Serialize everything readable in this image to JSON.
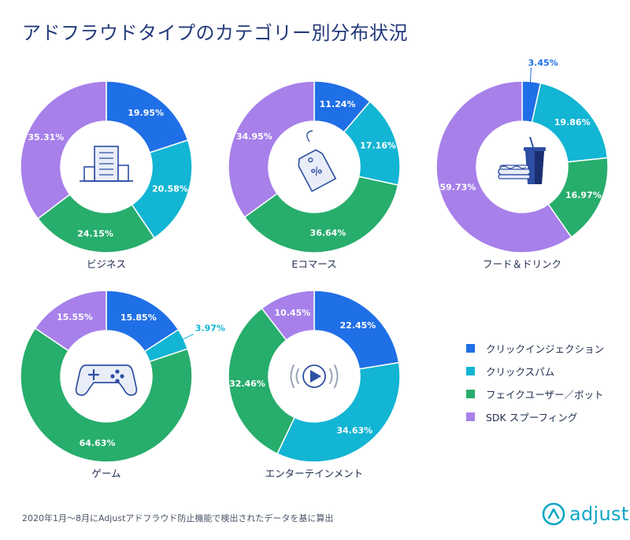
{
  "title": "アドフラウドタイプのカテゴリー別分布状況",
  "colors": {
    "click_injection": "#1f6fe6",
    "click_spam": "#12b5d3",
    "fake_user": "#27ad6c",
    "sdk_spoofing": "#a780ea"
  },
  "legend": [
    {
      "label": "クリックインジェクション",
      "color": "#1f6fe6"
    },
    {
      "label": "クリックスパム",
      "color": "#12b5d3"
    },
    {
      "label": "フェイクユーザー／ボット",
      "color": "#27ad6c"
    },
    {
      "label": "SDK スプーフィング",
      "color": "#a780ea"
    }
  ],
  "chart_data": [
    {
      "type": "pie",
      "label": "ビジネス",
      "icon": "building-icon",
      "series": [
        "クリックインジェクション",
        "クリックスパム",
        "フェイクユーザー／ボット",
        "SDK スプーフィング"
      ],
      "values": [
        19.95,
        20.58,
        24.15,
        35.31
      ],
      "value_labels": [
        "19.95%",
        "20.58%",
        "24.15%",
        "35.31%"
      ]
    },
    {
      "type": "pie",
      "label": "Eコマース",
      "icon": "price-tag-icon",
      "series": [
        "クリックインジェクション",
        "クリックスパム",
        "フェイクユーザー／ボット",
        "SDK スプーフィング"
      ],
      "values": [
        11.24,
        17.16,
        36.64,
        34.95
      ],
      "value_labels": [
        "11.24%",
        "17.16%",
        "36.64%",
        "34.95%"
      ]
    },
    {
      "type": "pie",
      "label": "フード＆ドリンク",
      "icon": "food-drink-icon",
      "series": [
        "クリックインジェクション",
        "クリックスパム",
        "フェイクユーザー／ボット",
        "SDK スプーフィング"
      ],
      "values": [
        3.45,
        19.86,
        16.97,
        59.73
      ],
      "value_labels": [
        "3.45%",
        "19.86%",
        "16.97%",
        "59.73%"
      ]
    },
    {
      "type": "pie",
      "label": "ゲーム",
      "icon": "gamepad-icon",
      "series": [
        "クリックインジェクション",
        "クリックスパム",
        "フェイクユーザー／ボット",
        "SDK スプーフィング"
      ],
      "values": [
        15.85,
        3.97,
        64.63,
        15.55
      ],
      "value_labels": [
        "15.85%",
        "3.97%",
        "64.63%",
        "15.55%"
      ]
    },
    {
      "type": "pie",
      "label": "エンターテインメント",
      "icon": "play-icon",
      "series": [
        "クリックインジェクション",
        "クリックスパム",
        "フェイクユーザー／ボット",
        "SDK スプーフィング"
      ],
      "values": [
        22.45,
        34.63,
        32.46,
        10.45
      ],
      "value_labels": [
        "22.45%",
        "34.63%",
        "32.46%",
        "10.45%"
      ]
    }
  ],
  "footnote": "2020年1月〜8月にAdjustアドフラウド防止機能で検出されたデータを基に算出",
  "logo": {
    "text": "adjust",
    "icon": "adjust-logo-icon"
  }
}
